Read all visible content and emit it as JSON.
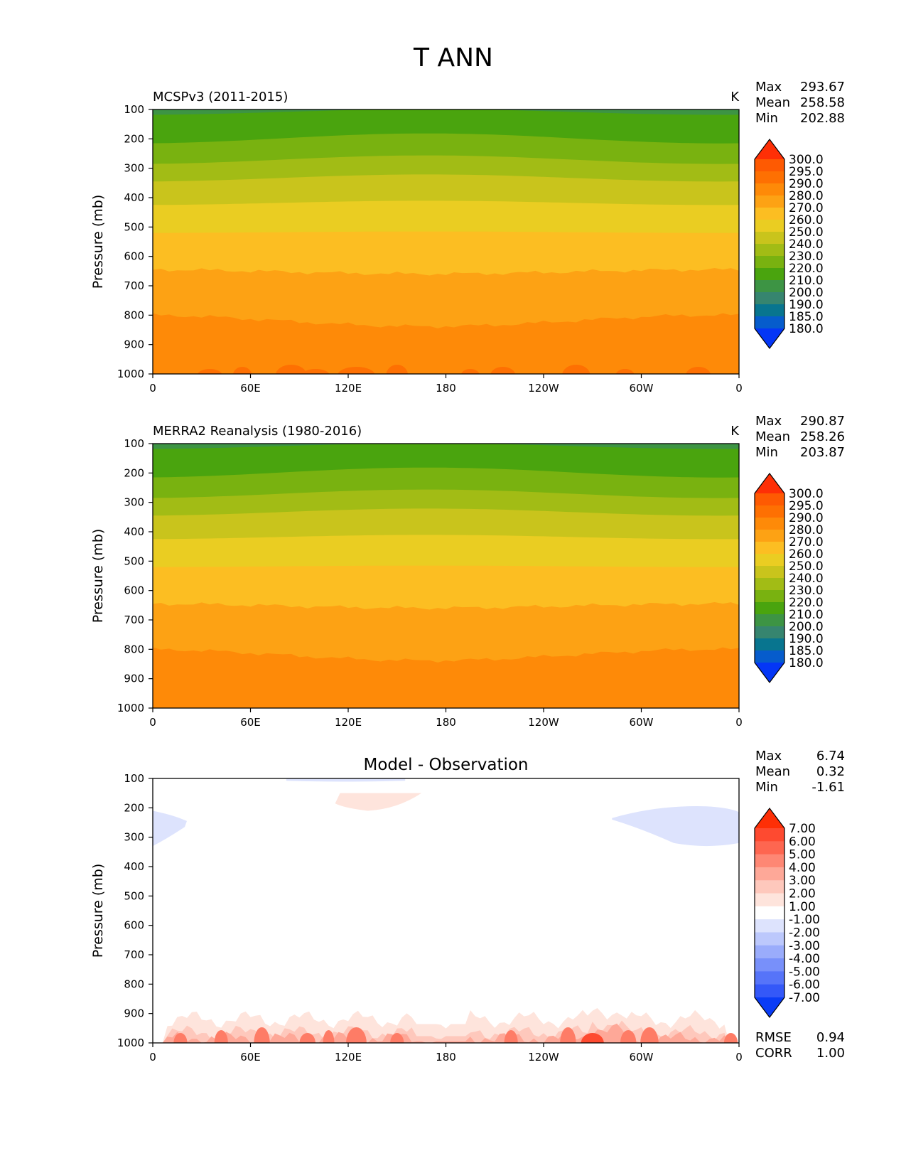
{
  "figure": {
    "title": "T ANN"
  },
  "chart_data": [
    {
      "type": "heatmap",
      "title": "MCSPv3 (2011-2015)",
      "units": "K",
      "ylabel": "Pressure (mb)",
      "x_ticks": [
        "0",
        "60E",
        "120E",
        "180",
        "120W",
        "60W",
        "0"
      ],
      "y_ticks": [
        "100",
        "200",
        "300",
        "400",
        "500",
        "600",
        "700",
        "800",
        "900",
        "1000"
      ],
      "xlim": [
        0,
        360
      ],
      "ylim": [
        100,
        1000
      ],
      "y_inverted": true,
      "stats": [
        {
          "name": "Max",
          "value": "293.67"
        },
        {
          "name": "Mean",
          "value": "258.58"
        },
        {
          "name": "Min",
          "value": "202.88"
        }
      ],
      "colorbar": {
        "labels": [
          "300.0",
          "295.0",
          "290.0",
          "280.0",
          "270.0",
          "260.0",
          "250.0",
          "240.0",
          "230.0",
          "220.0",
          "210.0",
          "200.0",
          "190.0",
          "185.0",
          "180.0"
        ],
        "colors": [
          "#fe2f06",
          "#fe5a02",
          "#fe7002",
          "#fe8a08",
          "#fda214",
          "#fcbe22",
          "#eacd22",
          "#c9c41c",
          "#a2bc15",
          "#79b210",
          "#4aa40e",
          "#3d9444",
          "#36856f",
          "#08758f",
          "#065ccc",
          "#0436f6"
        ]
      },
      "contour_levels_approx": [
        {
          "pressure": 100,
          "value": 205
        },
        {
          "pressure": 140,
          "value": 212
        },
        {
          "pressure": 200,
          "value": 220
        },
        {
          "pressure": 260,
          "value": 230
        },
        {
          "pressure": 320,
          "value": 240
        },
        {
          "pressure": 400,
          "value": 250
        },
        {
          "pressure": 480,
          "value": 260
        },
        {
          "pressure": 580,
          "value": 270
        },
        {
          "pressure": 720,
          "value": 280
        },
        {
          "pressure": 900,
          "value": 290
        },
        {
          "pressure": 1000,
          "value": 293
        }
      ]
    },
    {
      "type": "heatmap",
      "title": "MERRA2 Reanalysis (1980-2016)",
      "units": "K",
      "ylabel": "Pressure (mb)",
      "x_ticks": [
        "0",
        "60E",
        "120E",
        "180",
        "120W",
        "60W",
        "0"
      ],
      "y_ticks": [
        "100",
        "200",
        "300",
        "400",
        "500",
        "600",
        "700",
        "800",
        "900",
        "1000"
      ],
      "xlim": [
        0,
        360
      ],
      "ylim": [
        100,
        1000
      ],
      "y_inverted": true,
      "stats": [
        {
          "name": "Max",
          "value": "290.87"
        },
        {
          "name": "Mean",
          "value": "258.26"
        },
        {
          "name": "Min",
          "value": "203.87"
        }
      ],
      "colorbar": {
        "labels": [
          "300.0",
          "295.0",
          "290.0",
          "280.0",
          "270.0",
          "260.0",
          "250.0",
          "240.0",
          "230.0",
          "220.0",
          "210.0",
          "200.0",
          "190.0",
          "185.0",
          "180.0"
        ],
        "colors": [
          "#fe2f06",
          "#fe5a02",
          "#fe7002",
          "#fe8a08",
          "#fda214",
          "#fcbe22",
          "#eacd22",
          "#c9c41c",
          "#a2bc15",
          "#79b210",
          "#4aa40e",
          "#3d9444",
          "#36856f",
          "#08758f",
          "#065ccc",
          "#0436f6"
        ]
      },
      "contour_levels_approx": [
        {
          "pressure": 100,
          "value": 206
        },
        {
          "pressure": 140,
          "value": 212
        },
        {
          "pressure": 200,
          "value": 220
        },
        {
          "pressure": 260,
          "value": 230
        },
        {
          "pressure": 320,
          "value": 240
        },
        {
          "pressure": 400,
          "value": 250
        },
        {
          "pressure": 480,
          "value": 260
        },
        {
          "pressure": 580,
          "value": 270
        },
        {
          "pressure": 720,
          "value": 280
        },
        {
          "pressure": 1000,
          "value": 290
        }
      ]
    },
    {
      "type": "heatmap",
      "title": "Model - Observation",
      "units": "",
      "ylabel": "Pressure (mb)",
      "x_ticks": [
        "0",
        "60E",
        "120E",
        "180",
        "120W",
        "60W",
        "0"
      ],
      "y_ticks": [
        "100",
        "200",
        "300",
        "400",
        "500",
        "600",
        "700",
        "800",
        "900",
        "1000"
      ],
      "xlim": [
        0,
        360
      ],
      "ylim": [
        100,
        1000
      ],
      "y_inverted": true,
      "stats": [
        {
          "name": "Max",
          "value": "6.74"
        },
        {
          "name": "Mean",
          "value": "0.32"
        },
        {
          "name": "Min",
          "value": "-1.61"
        }
      ],
      "extra_stats": [
        {
          "name": "RMSE",
          "value": "0.94"
        },
        {
          "name": "CORR",
          "value": "1.00"
        }
      ],
      "colorbar": {
        "labels": [
          "7.00",
          "6.00",
          "5.00",
          "4.00",
          "3.00",
          "2.00",
          "1.00",
          "-1.00",
          "-2.00",
          "-3.00",
          "-4.00",
          "-5.00",
          "-6.00",
          "-7.00"
        ],
        "colors": [
          "#fe2f06",
          "#fe4a30",
          "#fe6650",
          "#fe8774",
          "#fea898",
          "#fec8bc",
          "#fee4dc",
          "#ffffff",
          "#dde3fd",
          "#bcc8fc",
          "#9aacfb",
          "#7890fa",
          "#5674f9",
          "#3458f8",
          "#0a3cf6"
        ]
      },
      "anomalies": [
        {
          "sign": "negative",
          "region": "0-20E, 230-330 mb"
        },
        {
          "sign": "negative",
          "region": "80E-160E, ~100 mb"
        },
        {
          "sign": "positive",
          "region": "110E-165E, 150-210 mb"
        },
        {
          "sign": "negative",
          "region": "80W-0, 190-330 mb"
        },
        {
          "sign": "positive",
          "region": "near surface 900-1000 mb, max ~6.74 near 70W"
        }
      ]
    }
  ]
}
